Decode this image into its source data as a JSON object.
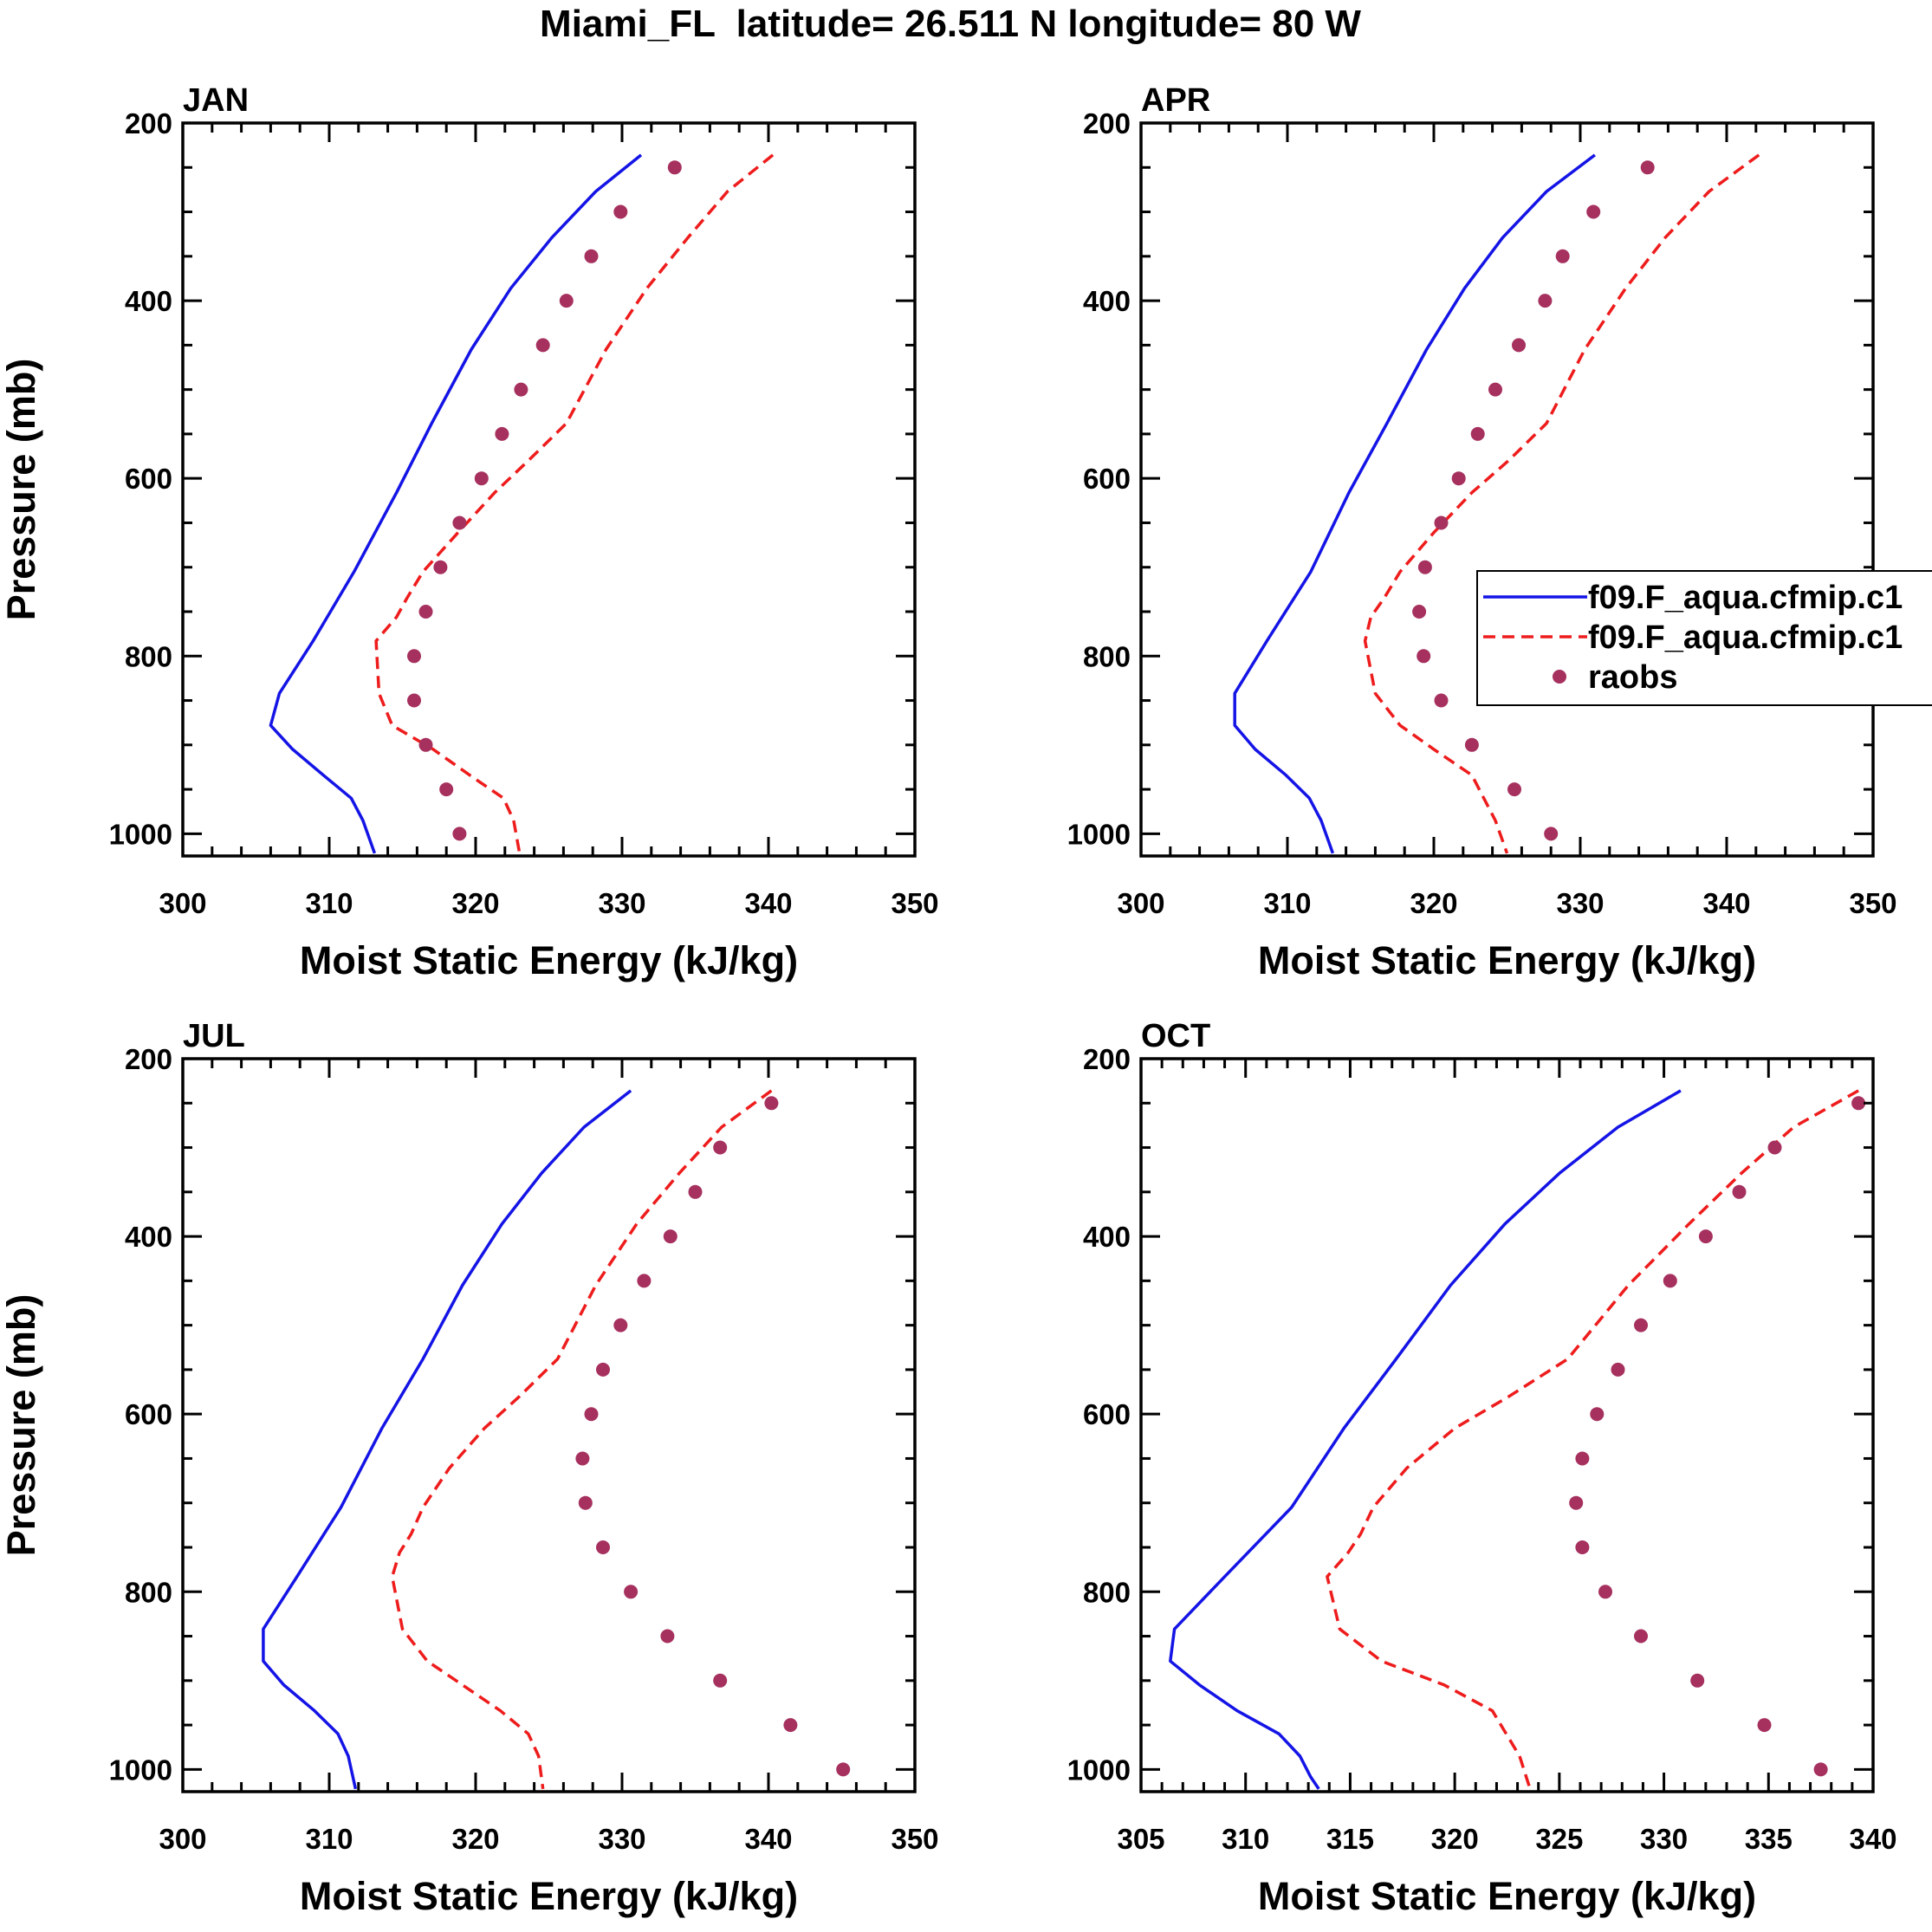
{
  "figure_title": "Miami_FL  latitude= 26.511 N longitude= 80 W",
  "colors": {
    "model1": "#1414e6",
    "model2": "#ee1c1c",
    "raobs": "#a6305e",
    "axes": "#000000"
  },
  "legend": {
    "panel": "APR",
    "entries": [
      {
        "label": "f09.F_aqua.cfmip.c1",
        "style": "solid",
        "color": "#1414e6"
      },
      {
        "label": "f09.F_aqua.cfmip.c1",
        "style": "dashed",
        "color": "#ee1c1c"
      },
      {
        "label": "raobs",
        "style": "marker",
        "color": "#a6305e"
      }
    ]
  },
  "chart_data": [
    {
      "type": "line",
      "title": "JAN",
      "xlabel": "Moist Static Energy (kJ/kg)",
      "ylabel": "Pressure (mb)",
      "xlim": [
        300,
        350
      ],
      "ylim": [
        200,
        1025
      ],
      "y_inverted": true,
      "xticks": [
        300,
        310,
        320,
        330,
        340,
        350
      ],
      "yticks": [
        200,
        400,
        600,
        800,
        1000
      ],
      "series": [
        {
          "name": "f09.F_aqua.cfmip.c1",
          "style": "solid",
          "color": "#1414e6",
          "x": [
            331.3,
            328.2,
            325.2,
            322.4,
            319.7,
            317.0,
            314.6,
            311.7,
            308.9,
            306.6,
            306.0,
            307.5,
            309.6,
            311.5,
            312.3,
            312.8,
            313.1
          ],
          "y": [
            236,
            277,
            329,
            386,
            455,
            538,
            616,
            705,
            783,
            842,
            878,
            905,
            934,
            960,
            985,
            1008,
            1022
          ]
        },
        {
          "name": "f09.F_aqua.cfmip.c1",
          "style": "dashed",
          "color": "#ee1c1c",
          "x": [
            340.3,
            337.2,
            334.5,
            331.7,
            328.9,
            326.2,
            323.6,
            321.3,
            318.8,
            316.4,
            315.3,
            314.6,
            313.2,
            313.4,
            314.3,
            317.1,
            319.6,
            321.9,
            322.6,
            323.0
          ],
          "y": [
            236,
            277,
            329,
            386,
            455,
            538,
            580,
            616,
            661,
            705,
            735,
            756,
            783,
            842,
            878,
            905,
            934,
            960,
            985,
            1022
          ]
        },
        {
          "name": "raobs",
          "style": "marker",
          "color": "#a6305e",
          "x": [
            333.6,
            329.9,
            327.9,
            326.2,
            324.6,
            323.1,
            321.8,
            320.4,
            318.9,
            317.6,
            316.6,
            315.8,
            315.8,
            316.6,
            318.0,
            318.9
          ],
          "y": [
            250,
            300,
            350,
            400,
            450,
            500,
            550,
            600,
            650,
            700,
            750,
            800,
            850,
            900,
            950,
            1000
          ]
        }
      ]
    },
    {
      "type": "line",
      "title": "APR",
      "xlabel": "Moist Static Energy (kJ/kg)",
      "ylabel": "",
      "xlim": [
        300,
        350
      ],
      "ylim": [
        200,
        1025
      ],
      "y_inverted": true,
      "xticks": [
        300,
        310,
        320,
        330,
        340,
        350
      ],
      "yticks": [
        200,
        400,
        600,
        800,
        1000
      ],
      "series": [
        {
          "name": "f09.F_aqua.cfmip.c1",
          "style": "solid",
          "color": "#1414e6",
          "x": [
            331.0,
            327.7,
            324.7,
            322.1,
            319.5,
            316.8,
            314.2,
            311.6,
            308.6,
            306.4,
            306.4,
            307.8,
            309.9,
            311.5,
            312.3,
            312.8,
            313.1
          ],
          "y": [
            236,
            277,
            329,
            386,
            455,
            538,
            616,
            705,
            783,
            842,
            878,
            905,
            934,
            960,
            985,
            1008,
            1022
          ]
        },
        {
          "name": "f09.F_aqua.cfmip.c1",
          "style": "dashed",
          "color": "#ee1c1c",
          "x": [
            342.2,
            338.8,
            335.8,
            333.1,
            330.3,
            327.7,
            325.1,
            322.6,
            320.0,
            317.7,
            316.6,
            315.7,
            315.3,
            316.0,
            317.7,
            320.0,
            322.6,
            324.2,
            325.0
          ],
          "y": [
            236,
            277,
            329,
            386,
            455,
            538,
            580,
            616,
            661,
            705,
            735,
            756,
            783,
            842,
            878,
            905,
            934,
            985,
            1022
          ]
        },
        {
          "name": "raobs",
          "style": "marker",
          "color": "#a6305e",
          "x": [
            334.6,
            330.9,
            328.8,
            327.6,
            325.8,
            324.2,
            323.0,
            321.7,
            320.5,
            319.4,
            319.0,
            319.3,
            320.5,
            322.6,
            325.5,
            328.0
          ],
          "y": [
            250,
            300,
            350,
            400,
            450,
            500,
            550,
            600,
            650,
            700,
            750,
            800,
            850,
            900,
            950,
            1000
          ]
        }
      ]
    },
    {
      "type": "line",
      "title": "JUL",
      "xlabel": "Moist Static Energy (kJ/kg)",
      "ylabel": "Pressure (mb)",
      "xlim": [
        300,
        350
      ],
      "ylim": [
        200,
        1025
      ],
      "y_inverted": true,
      "xticks": [
        300,
        310,
        320,
        330,
        340,
        350
      ],
      "yticks": [
        200,
        400,
        600,
        800,
        1000
      ],
      "series": [
        {
          "name": "f09.F_aqua.cfmip.c1",
          "style": "solid",
          "color": "#1414e6",
          "x": [
            330.6,
            327.4,
            324.5,
            321.8,
            319.1,
            316.4,
            313.6,
            310.8,
            307.8,
            305.5,
            305.5,
            306.9,
            309.0,
            310.6,
            311.3,
            311.8
          ],
          "y": [
            236,
            277,
            329,
            386,
            455,
            538,
            616,
            705,
            783,
            842,
            878,
            905,
            934,
            960,
            985,
            1022
          ]
        },
        {
          "name": "f09.F_aqua.cfmip.c1",
          "style": "dashed",
          "color": "#ee1c1c",
          "x": [
            340.2,
            336.8,
            333.9,
            331.0,
            328.2,
            325.6,
            323.0,
            320.6,
            318.2,
            316.4,
            315.6,
            314.8,
            314.3,
            315.0,
            316.7,
            319.1,
            321.7,
            323.6,
            324.3,
            324.6
          ],
          "y": [
            236,
            277,
            329,
            386,
            455,
            538,
            580,
            616,
            661,
            705,
            735,
            756,
            783,
            842,
            878,
            905,
            934,
            960,
            985,
            1022
          ]
        },
        {
          "name": "raobs",
          "style": "marker",
          "color": "#a6305e",
          "x": [
            340.2,
            336.7,
            335.0,
            333.3,
            331.5,
            329.9,
            328.7,
            327.9,
            327.3,
            327.5,
            328.7,
            330.6,
            333.1,
            336.7,
            341.5,
            345.1
          ],
          "y": [
            250,
            300,
            350,
            400,
            450,
            500,
            550,
            600,
            650,
            700,
            750,
            800,
            850,
            900,
            950,
            1000
          ]
        }
      ]
    },
    {
      "type": "line",
      "title": "OCT",
      "xlabel": "Moist Static Energy (kJ/kg)",
      "ylabel": "",
      "xlim": [
        305,
        340
      ],
      "ylim": [
        200,
        1025
      ],
      "y_inverted": true,
      "xticks": [
        305,
        310,
        315,
        320,
        325,
        330,
        335,
        340
      ],
      "yticks": [
        200,
        400,
        600,
        800,
        1000
      ],
      "series": [
        {
          "name": "f09.F_aqua.cfmip.c1",
          "style": "solid",
          "color": "#1414e6",
          "x": [
            330.8,
            327.8,
            325.0,
            322.4,
            319.8,
            317.2,
            314.7,
            312.2,
            309.0,
            306.6,
            306.4,
            307.8,
            309.6,
            311.6,
            312.6,
            313.1,
            313.5
          ],
          "y": [
            236,
            277,
            329,
            386,
            455,
            538,
            616,
            705,
            783,
            842,
            878,
            905,
            934,
            960,
            985,
            1008,
            1022
          ]
        },
        {
          "name": "f09.F_aqua.cfmip.c1",
          "style": "dashed",
          "color": "#ee1c1c",
          "x": [
            339.3,
            336.2,
            333.7,
            331.2,
            328.3,
            325.4,
            322.6,
            320.0,
            317.7,
            316.1,
            315.5,
            314.9,
            313.9,
            314.5,
            316.5,
            319.5,
            321.8,
            323.1,
            323.6
          ],
          "y": [
            236,
            277,
            329,
            386,
            455,
            538,
            580,
            616,
            661,
            705,
            735,
            756,
            783,
            842,
            878,
            905,
            934,
            985,
            1022
          ]
        },
        {
          "name": "raobs",
          "style": "marker",
          "color": "#a6305e",
          "x": [
            339.3,
            335.3,
            333.6,
            332.0,
            330.3,
            328.9,
            327.8,
            326.8,
            326.1,
            325.8,
            326.1,
            327.2,
            328.9,
            331.6,
            334.8,
            337.5
          ],
          "y": [
            250,
            300,
            350,
            400,
            450,
            500,
            550,
            600,
            650,
            700,
            750,
            800,
            850,
            900,
            950,
            1000
          ]
        }
      ]
    }
  ]
}
